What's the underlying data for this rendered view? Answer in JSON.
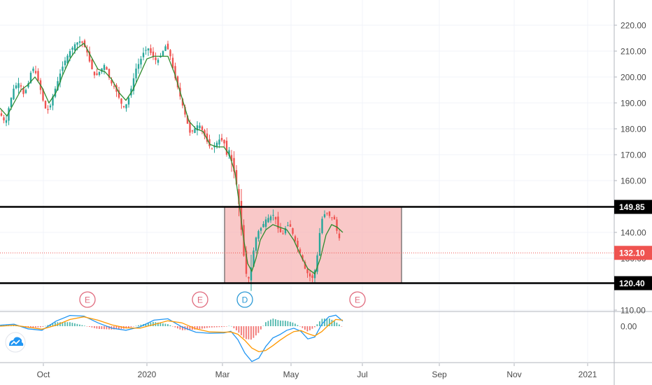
{
  "chart_data": [
    {
      "type": "candlestick",
      "title": "",
      "x_axis_labels": [
        "Oct",
        "2020",
        "Mar",
        "May",
        "Jul",
        "Sep",
        "Nov",
        "2021"
      ],
      "y_axis_labels": [
        "220.00",
        "210.00",
        "200.00",
        "190.00",
        "180.00",
        "170.00",
        "160.00",
        "140.00",
        "130.00",
        "110.00"
      ],
      "ylim": [
        110,
        222
      ],
      "last_price": 132.1,
      "price_labels": [
        "149.85",
        "132.10",
        "120.40"
      ],
      "horizontal_levels": [
        149.85,
        120.4
      ],
      "range_box": {
        "from": "Mar 2020",
        "to": "Jun 2020",
        "top": 149.85,
        "bottom": 120.4
      },
      "close_path": [
        [
          0,
          186
        ],
        [
          8,
          182
        ],
        [
          14,
          190
        ],
        [
          20,
          196
        ],
        [
          28,
          198
        ],
        [
          34,
          193
        ],
        [
          40,
          197
        ],
        [
          46,
          204
        ],
        [
          52,
          201
        ],
        [
          58,
          195
        ],
        [
          64,
          188
        ],
        [
          70,
          187
        ],
        [
          76,
          193
        ],
        [
          82,
          198
        ],
        [
          88,
          203
        ],
        [
          94,
          207
        ],
        [
          100,
          210
        ],
        [
          108,
          213
        ],
        [
          116,
          214
        ],
        [
          124,
          210
        ],
        [
          130,
          204
        ],
        [
          136,
          200
        ],
        [
          142,
          202
        ],
        [
          150,
          205
        ],
        [
          158,
          198
        ],
        [
          164,
          196
        ],
        [
          170,
          192
        ],
        [
          176,
          188
        ],
        [
          182,
          190
        ],
        [
          188,
          196
        ],
        [
          194,
          203
        ],
        [
          200,
          206
        ],
        [
          206,
          210
        ],
        [
          212,
          211
        ],
        [
          218,
          208
        ],
        [
          224,
          206
        ],
        [
          230,
          208
        ],
        [
          236,
          212
        ],
        [
          242,
          210
        ],
        [
          248,
          202
        ],
        [
          254,
          196
        ],
        [
          260,
          190
        ],
        [
          266,
          184
        ],
        [
          272,
          178
        ],
        [
          278,
          180
        ],
        [
          284,
          182
        ],
        [
          290,
          179
        ],
        [
          296,
          175
        ],
        [
          302,
          172
        ],
        [
          308,
          174
        ],
        [
          314,
          176
        ],
        [
          320,
          175
        ],
        [
          324,
          170
        ],
        [
          328,
          172
        ],
        [
          332,
          166
        ],
        [
          336,
          162
        ],
        [
          340,
          155
        ],
        [
          344,
          144
        ],
        [
          348,
          132
        ],
        [
          352,
          124
        ],
        [
          356,
          122
        ],
        [
          360,
          128
        ],
        [
          364,
          136
        ],
        [
          368,
          140
        ],
        [
          374,
          142
        ],
        [
          380,
          145
        ],
        [
          386,
          146
        ],
        [
          392,
          147
        ],
        [
          398,
          141
        ],
        [
          404,
          139
        ],
        [
          410,
          143
        ],
        [
          416,
          142
        ],
        [
          420,
          138
        ],
        [
          426,
          134
        ],
        [
          432,
          130
        ],
        [
          436,
          126
        ],
        [
          440,
          124
        ],
        [
          446,
          122
        ],
        [
          452,
          127
        ],
        [
          456,
          138
        ],
        [
          460,
          145
        ],
        [
          466,
          148
        ],
        [
          472,
          146
        ],
        [
          478,
          145
        ],
        [
          482,
          140
        ],
        [
          486,
          137
        ],
        [
          488,
          133
        ]
      ],
      "ma_path": [
        [
          0,
          188
        ],
        [
          10,
          185
        ],
        [
          20,
          190
        ],
        [
          30,
          195
        ],
        [
          40,
          197
        ],
        [
          50,
          200
        ],
        [
          60,
          196
        ],
        [
          70,
          190
        ],
        [
          80,
          194
        ],
        [
          90,
          201
        ],
        [
          100,
          207
        ],
        [
          110,
          211
        ],
        [
          120,
          213
        ],
        [
          130,
          208
        ],
        [
          140,
          203
        ],
        [
          150,
          202
        ],
        [
          160,
          199
        ],
        [
          170,
          194
        ],
        [
          180,
          191
        ],
        [
          190,
          195
        ],
        [
          200,
          201
        ],
        [
          210,
          207
        ],
        [
          220,
          208
        ],
        [
          230,
          208
        ],
        [
          240,
          208
        ],
        [
          250,
          201
        ],
        [
          260,
          192
        ],
        [
          270,
          183
        ],
        [
          280,
          180
        ],
        [
          290,
          179
        ],
        [
          300,
          174
        ],
        [
          310,
          173
        ],
        [
          320,
          173
        ],
        [
          328,
          170
        ],
        [
          336,
          163
        ],
        [
          342,
          151
        ],
        [
          348,
          138
        ],
        [
          354,
          128
        ],
        [
          360,
          125
        ],
        [
          366,
          130
        ],
        [
          372,
          137
        ],
        [
          380,
          141
        ],
        [
          390,
          143
        ],
        [
          400,
          142
        ],
        [
          410,
          141
        ],
        [
          420,
          137
        ],
        [
          430,
          131
        ],
        [
          440,
          126
        ],
        [
          450,
          124
        ],
        [
          458,
          130
        ],
        [
          466,
          139
        ],
        [
          474,
          143
        ],
        [
          482,
          142
        ],
        [
          490,
          140
        ]
      ],
      "events": [
        {
          "label": "E",
          "date": "Nov 2019",
          "color": "#e06a7d"
        },
        {
          "label": "E",
          "date": "Feb 2020",
          "color": "#e06a7d"
        },
        {
          "label": "D",
          "date": "Mar 2020",
          "color": "#2c9ad6"
        },
        {
          "label": "E",
          "date": "Jun 2020",
          "color": "#e06a7d"
        }
      ],
      "colors": {
        "up": "#26a69a",
        "down": "#ef5350",
        "ma": "#2e8b2e",
        "box_fill": "#f7b6b6",
        "box_stroke": "#444444"
      }
    },
    {
      "type": "macd",
      "y_axis_labels": [
        "0.00"
      ],
      "ylim": [
        -13,
        6
      ],
      "macd_line": [
        [
          0,
          0.3
        ],
        [
          20,
          0.6
        ],
        [
          40,
          -0.8
        ],
        [
          60,
          -1.2
        ],
        [
          80,
          1.5
        ],
        [
          100,
          3.2
        ],
        [
          120,
          3.0
        ],
        [
          140,
          1.0
        ],
        [
          160,
          -0.6
        ],
        [
          180,
          -1.2
        ],
        [
          200,
          -0.2
        ],
        [
          220,
          1.8
        ],
        [
          240,
          2.2
        ],
        [
          260,
          -0.2
        ],
        [
          280,
          -1.8
        ],
        [
          300,
          -2.1
        ],
        [
          320,
          -2.0
        ],
        [
          330,
          -1.5
        ],
        [
          340,
          -4
        ],
        [
          350,
          -8
        ],
        [
          360,
          -10.5
        ],
        [
          370,
          -9.5
        ],
        [
          380,
          -6
        ],
        [
          390,
          -3.5
        ],
        [
          400,
          -2.5
        ],
        [
          410,
          -1.2
        ],
        [
          420,
          -0.6
        ],
        [
          430,
          -1.5
        ],
        [
          440,
          -3.8
        ],
        [
          450,
          -3.2
        ],
        [
          460,
          0.6
        ],
        [
          470,
          2.8
        ],
        [
          480,
          3.3
        ],
        [
          490,
          1.5
        ]
      ],
      "signal_line": [
        [
          0,
          0.0
        ],
        [
          20,
          0.3
        ],
        [
          40,
          -0.3
        ],
        [
          60,
          -0.9
        ],
        [
          80,
          0.3
        ],
        [
          100,
          2.0
        ],
        [
          120,
          2.8
        ],
        [
          140,
          1.8
        ],
        [
          160,
          0.4
        ],
        [
          180,
          -0.5
        ],
        [
          200,
          -0.6
        ],
        [
          220,
          0.5
        ],
        [
          240,
          1.6
        ],
        [
          260,
          1.0
        ],
        [
          280,
          -0.8
        ],
        [
          300,
          -1.7
        ],
        [
          320,
          -1.8
        ],
        [
          330,
          -1.7
        ],
        [
          340,
          -2.4
        ],
        [
          350,
          -4.2
        ],
        [
          360,
          -6.5
        ],
        [
          370,
          -7.6
        ],
        [
          380,
          -7.2
        ],
        [
          390,
          -5.8
        ],
        [
          400,
          -4.2
        ],
        [
          410,
          -2.8
        ],
        [
          420,
          -1.6
        ],
        [
          430,
          -1.3
        ],
        [
          440,
          -2.2
        ],
        [
          450,
          -2.9
        ],
        [
          460,
          -1.6
        ],
        [
          470,
          0.4
        ],
        [
          480,
          2.0
        ],
        [
          490,
          1.8
        ]
      ],
      "colors": {
        "macd": "#2196f3",
        "signal": "#ff9800",
        "hist_up": "#26a69a",
        "hist_down": "#ef5350"
      }
    }
  ]
}
